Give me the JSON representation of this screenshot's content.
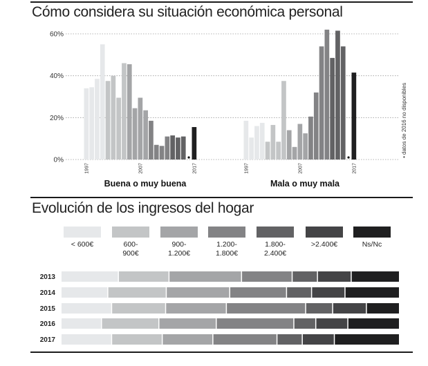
{
  "colors": [
    "#e6e8ea",
    "#c3c5c6",
    "#a4a5a7",
    "#838385",
    "#626264",
    "#444446",
    "#1f1f20"
  ],
  "chart_data": [
    {
      "type": "bar",
      "title": "Cómo considera su situación económica personal",
      "ylim": [
        0,
        60
      ],
      "yticks": [
        "0%",
        "20%",
        "40%",
        "60%"
      ],
      "ytick_values": [
        0,
        20,
        40,
        60
      ],
      "year_labels": [
        "1997",
        "2007",
        "2017"
      ],
      "note": "datos de 2016 no disponibles",
      "note_marker": "•",
      "panels": [
        {
          "label": "Buena o muy buena",
          "values": [
            34,
            34.5,
            38.5,
            55,
            37.5,
            40,
            29.5,
            46,
            45.5,
            24.5,
            29.5,
            23.5,
            18.5,
            7,
            6.5,
            11,
            11.5,
            10.5,
            11,
            null,
            15.5
          ]
        },
        {
          "label": "Mala o muy mala",
          "values": [
            18.5,
            10.5,
            16,
            17.5,
            8.5,
            16.5,
            8.5,
            37.5,
            14,
            6,
            17,
            12.5,
            20.5,
            32,
            54,
            62,
            48.5,
            61.5,
            54,
            null,
            41.5
          ]
        }
      ]
    },
    {
      "type": "bar",
      "stacked": true,
      "orientation": "horizontal",
      "title": "Evolución de los ingresos del hogar",
      "legend": [
        "< 600€",
        "600-\n900€",
        "900-\n1.200€",
        "1.200-\n1.800€",
        "1.800-\n2.400€",
        ">2.400€",
        "Ns/Nc"
      ],
      "categories": [
        "2013",
        "2014",
        "2015",
        "2016",
        "2017"
      ],
      "rows": [
        [
          17,
          15,
          21.5,
          15,
          7.5,
          10,
          14
        ],
        [
          14,
          17.5,
          19,
          17,
          7.5,
          10,
          16
        ],
        [
          15,
          16,
          18,
          23.5,
          8,
          10,
          9.5
        ],
        [
          12,
          17,
          17,
          23,
          6.5,
          9.5,
          15
        ],
        [
          15,
          15,
          15,
          19,
          7.5,
          9.5,
          19
        ]
      ]
    }
  ]
}
